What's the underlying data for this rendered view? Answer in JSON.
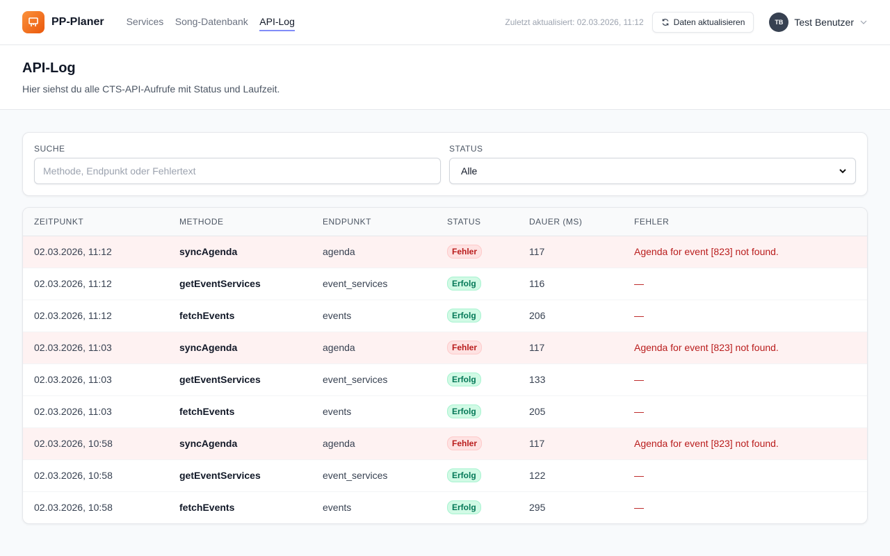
{
  "header": {
    "brand": "PP-Planer",
    "nav": [
      {
        "label": "Services",
        "active": false
      },
      {
        "label": "Song-Datenbank",
        "active": false
      },
      {
        "label": "API-Log",
        "active": true
      }
    ],
    "updated": "Zuletzt aktualisiert: 02.03.2026, 11:12",
    "refresh_label": "Daten aktualisieren",
    "user_initials": "TB",
    "user_name": "Test Benutzer"
  },
  "page": {
    "title": "API-Log",
    "subtitle": "Hier siehst du alle CTS-API-Aufrufe mit Status und Laufzeit."
  },
  "filters": {
    "search_label": "SUCHE",
    "search_placeholder": "Methode, Endpunkt oder Fehlertext",
    "search_value": "",
    "status_label": "STATUS",
    "status_value": "Alle"
  },
  "table": {
    "columns": [
      "ZEITPUNKT",
      "METHODE",
      "ENDPUNKT",
      "STATUS",
      "DAUER (MS)",
      "FEHLER"
    ],
    "rows": [
      {
        "time": "02.03.2026, 11:12",
        "method": "syncAgenda",
        "endpoint": "agenda",
        "status": "Fehler",
        "duration": "117",
        "error": "Agenda for event [823] not found."
      },
      {
        "time": "02.03.2026, 11:12",
        "method": "getEventServices",
        "endpoint": "event_services",
        "status": "Erfolg",
        "duration": "116",
        "error": "—"
      },
      {
        "time": "02.03.2026, 11:12",
        "method": "fetchEvents",
        "endpoint": "events",
        "status": "Erfolg",
        "duration": "206",
        "error": "—"
      },
      {
        "time": "02.03.2026, 11:03",
        "method": "syncAgenda",
        "endpoint": "agenda",
        "status": "Fehler",
        "duration": "117",
        "error": "Agenda for event [823] not found."
      },
      {
        "time": "02.03.2026, 11:03",
        "method": "getEventServices",
        "endpoint": "event_services",
        "status": "Erfolg",
        "duration": "133",
        "error": "—"
      },
      {
        "time": "02.03.2026, 11:03",
        "method": "fetchEvents",
        "endpoint": "events",
        "status": "Erfolg",
        "duration": "205",
        "error": "—"
      },
      {
        "time": "02.03.2026, 10:58",
        "method": "syncAgenda",
        "endpoint": "agenda",
        "status": "Fehler",
        "duration": "117",
        "error": "Agenda for event [823] not found."
      },
      {
        "time": "02.03.2026, 10:58",
        "method": "getEventServices",
        "endpoint": "event_services",
        "status": "Erfolg",
        "duration": "122",
        "error": "—"
      },
      {
        "time": "02.03.2026, 10:58",
        "method": "fetchEvents",
        "endpoint": "events",
        "status": "Erfolg",
        "duration": "295",
        "error": "—"
      }
    ]
  },
  "colors": {
    "accent": "#818cf8",
    "brand": "#f97316",
    "error": "#b91c1c",
    "success": "#047857"
  }
}
